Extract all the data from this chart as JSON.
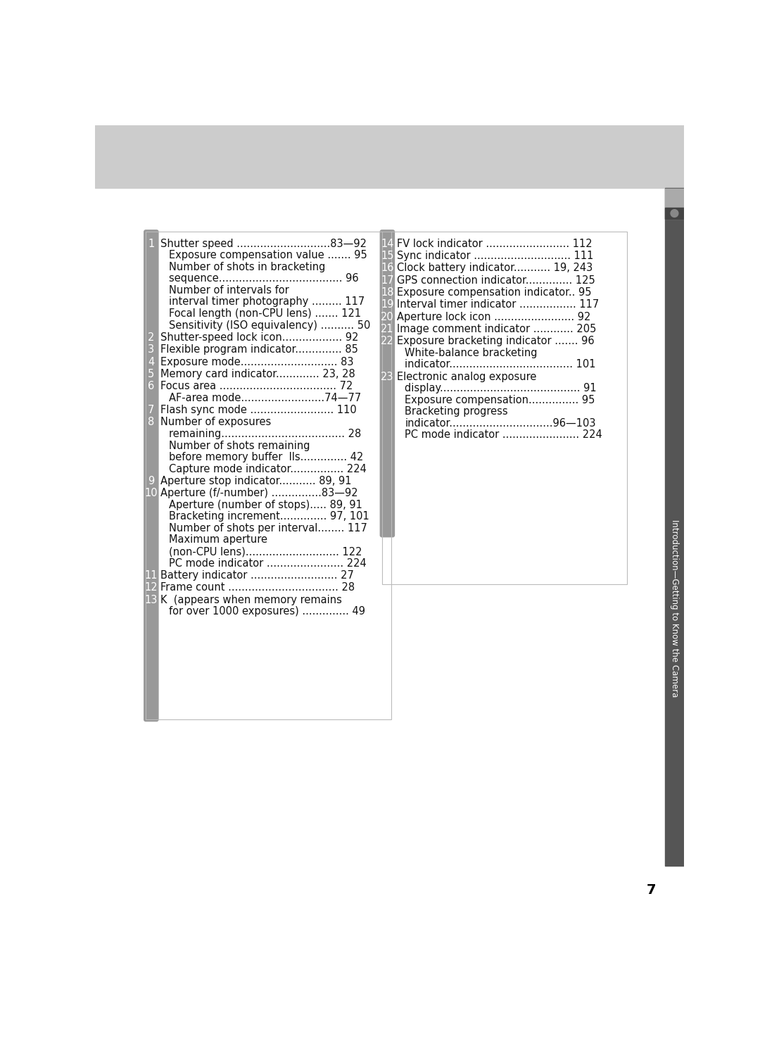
{
  "page_bg": "#ffffff",
  "header_bg": "#cccccc",
  "sidebar_bg": "#555555",
  "sidebar_text_color": "#ffffff",
  "sidebar_text": "Introduction—Getting to Know the Camera",
  "page_number": "7",
  "left_column": [
    {
      "num": "1",
      "entries": [
        {
          "text": "Shutter speed ............................83—92",
          "indent": false
        },
        {
          "text": "Exposure compensation value ....... 95",
          "indent": true
        },
        {
          "text": "Number of shots in bracketing",
          "indent": true
        },
        {
          "text": "sequence..................................... 96",
          "indent": true
        },
        {
          "text": "Number of intervals for",
          "indent": true
        },
        {
          "text": "interval timer photography ......... 117",
          "indent": true
        },
        {
          "text": "Focal length (non-CPU lens) ....... 121",
          "indent": true
        },
        {
          "text": "Sensitivity (ISO equivalency) .......... 50",
          "indent": true
        }
      ]
    },
    {
      "num": "2",
      "entries": [
        {
          "text": "Shutter-speed lock icon.................. 92",
          "indent": false
        }
      ]
    },
    {
      "num": "3",
      "entries": [
        {
          "text": "Flexible program indicator.............. 85",
          "indent": false
        }
      ]
    },
    {
      "num": "4",
      "entries": [
        {
          "text": "Exposure mode............................. 83",
          "indent": false
        }
      ]
    },
    {
      "num": "5",
      "entries": [
        {
          "text": "Memory card indicator............. 23, 28",
          "indent": false
        }
      ]
    },
    {
      "num": "6",
      "entries": [
        {
          "text": "Focus area ................................... 72",
          "indent": false
        },
        {
          "text": "AF-area mode.........................74—77",
          "indent": true
        }
      ]
    },
    {
      "num": "7",
      "entries": [
        {
          "text": "Flash sync mode ......................... 110",
          "indent": false
        }
      ]
    },
    {
      "num": "8",
      "entries": [
        {
          "text": "Number of exposures",
          "indent": false
        },
        {
          "text": "remaining..................................... 28",
          "indent": true
        },
        {
          "text": "Number of shots remaining",
          "indent": true
        },
        {
          "text": "before memory buffer  lls.............. 42",
          "indent": true
        },
        {
          "text": "Capture mode indicator................ 224",
          "indent": true
        }
      ]
    },
    {
      "num": "9",
      "entries": [
        {
          "text": "Aperture stop indicator........... 89, 91",
          "indent": false
        }
      ]
    },
    {
      "num": "10",
      "entries": [
        {
          "text": "Aperture (f/-number) ...............83—92",
          "indent": false
        },
        {
          "text": "Aperture (number of stops)..... 89, 91",
          "indent": true
        },
        {
          "text": "Bracketing increment.............. 97, 101",
          "indent": true
        },
        {
          "text": "Number of shots per interval........ 117",
          "indent": true
        },
        {
          "text": "Maximum aperture",
          "indent": true
        },
        {
          "text": "(non-CPU lens)............................ 122",
          "indent": true
        },
        {
          "text": "PC mode indicator ....................... 224",
          "indent": true
        }
      ]
    },
    {
      "num": "11",
      "entries": [
        {
          "text": "Battery indicator .......................... 27",
          "indent": false
        }
      ]
    },
    {
      "num": "12",
      "entries": [
        {
          "text": "Frame count ................................. 28",
          "indent": false
        }
      ]
    },
    {
      "num": "13",
      "entries": [
        {
          "text": "K  (appears when memory remains",
          "indent": false
        },
        {
          "text": "for over 1000 exposures) .............. 49",
          "indent": true
        }
      ]
    }
  ],
  "right_column": [
    {
      "num": "14",
      "entries": [
        {
          "text": "FV lock indicator ......................... 112",
          "indent": false
        }
      ]
    },
    {
      "num": "15",
      "entries": [
        {
          "text": "Sync indicator ............................. 111",
          "indent": false
        }
      ]
    },
    {
      "num": "16",
      "entries": [
        {
          "text": "Clock battery indicator........... 19, 243",
          "indent": false
        }
      ]
    },
    {
      "num": "17",
      "entries": [
        {
          "text": "GPS connection indicator.............. 125",
          "indent": false
        }
      ]
    },
    {
      "num": "18",
      "entries": [
        {
          "text": "Exposure compensation indicator.. 95",
          "indent": false
        }
      ]
    },
    {
      "num": "19",
      "entries": [
        {
          "text": "Interval timer indicator ................. 117",
          "indent": false
        }
      ]
    },
    {
      "num": "20",
      "entries": [
        {
          "text": "Aperture lock icon ........................ 92",
          "indent": false
        }
      ]
    },
    {
      "num": "21",
      "entries": [
        {
          "text": "Image comment indicator ............ 205",
          "indent": false
        }
      ]
    },
    {
      "num": "22",
      "entries": [
        {
          "text": "Exposure bracketing indicator ....... 96",
          "indent": false
        },
        {
          "text": "White-balance bracketing",
          "indent": true
        },
        {
          "text": "indicator..................................... 101",
          "indent": true
        }
      ]
    },
    {
      "num": "23",
      "entries": [
        {
          "text": "Electronic analog exposure",
          "indent": false
        },
        {
          "text": "display.......................................... 91",
          "indent": true
        },
        {
          "text": "Exposure compensation............... 95",
          "indent": true
        },
        {
          "text": "Bracketing progress",
          "indent": true
        },
        {
          "text": "indicator...............................96—103",
          "indent": true
        },
        {
          "text": "PC mode indicator ....................... 224",
          "indent": true
        }
      ]
    }
  ],
  "icon_color": "#444444",
  "icon_light": "#aaaaaa"
}
